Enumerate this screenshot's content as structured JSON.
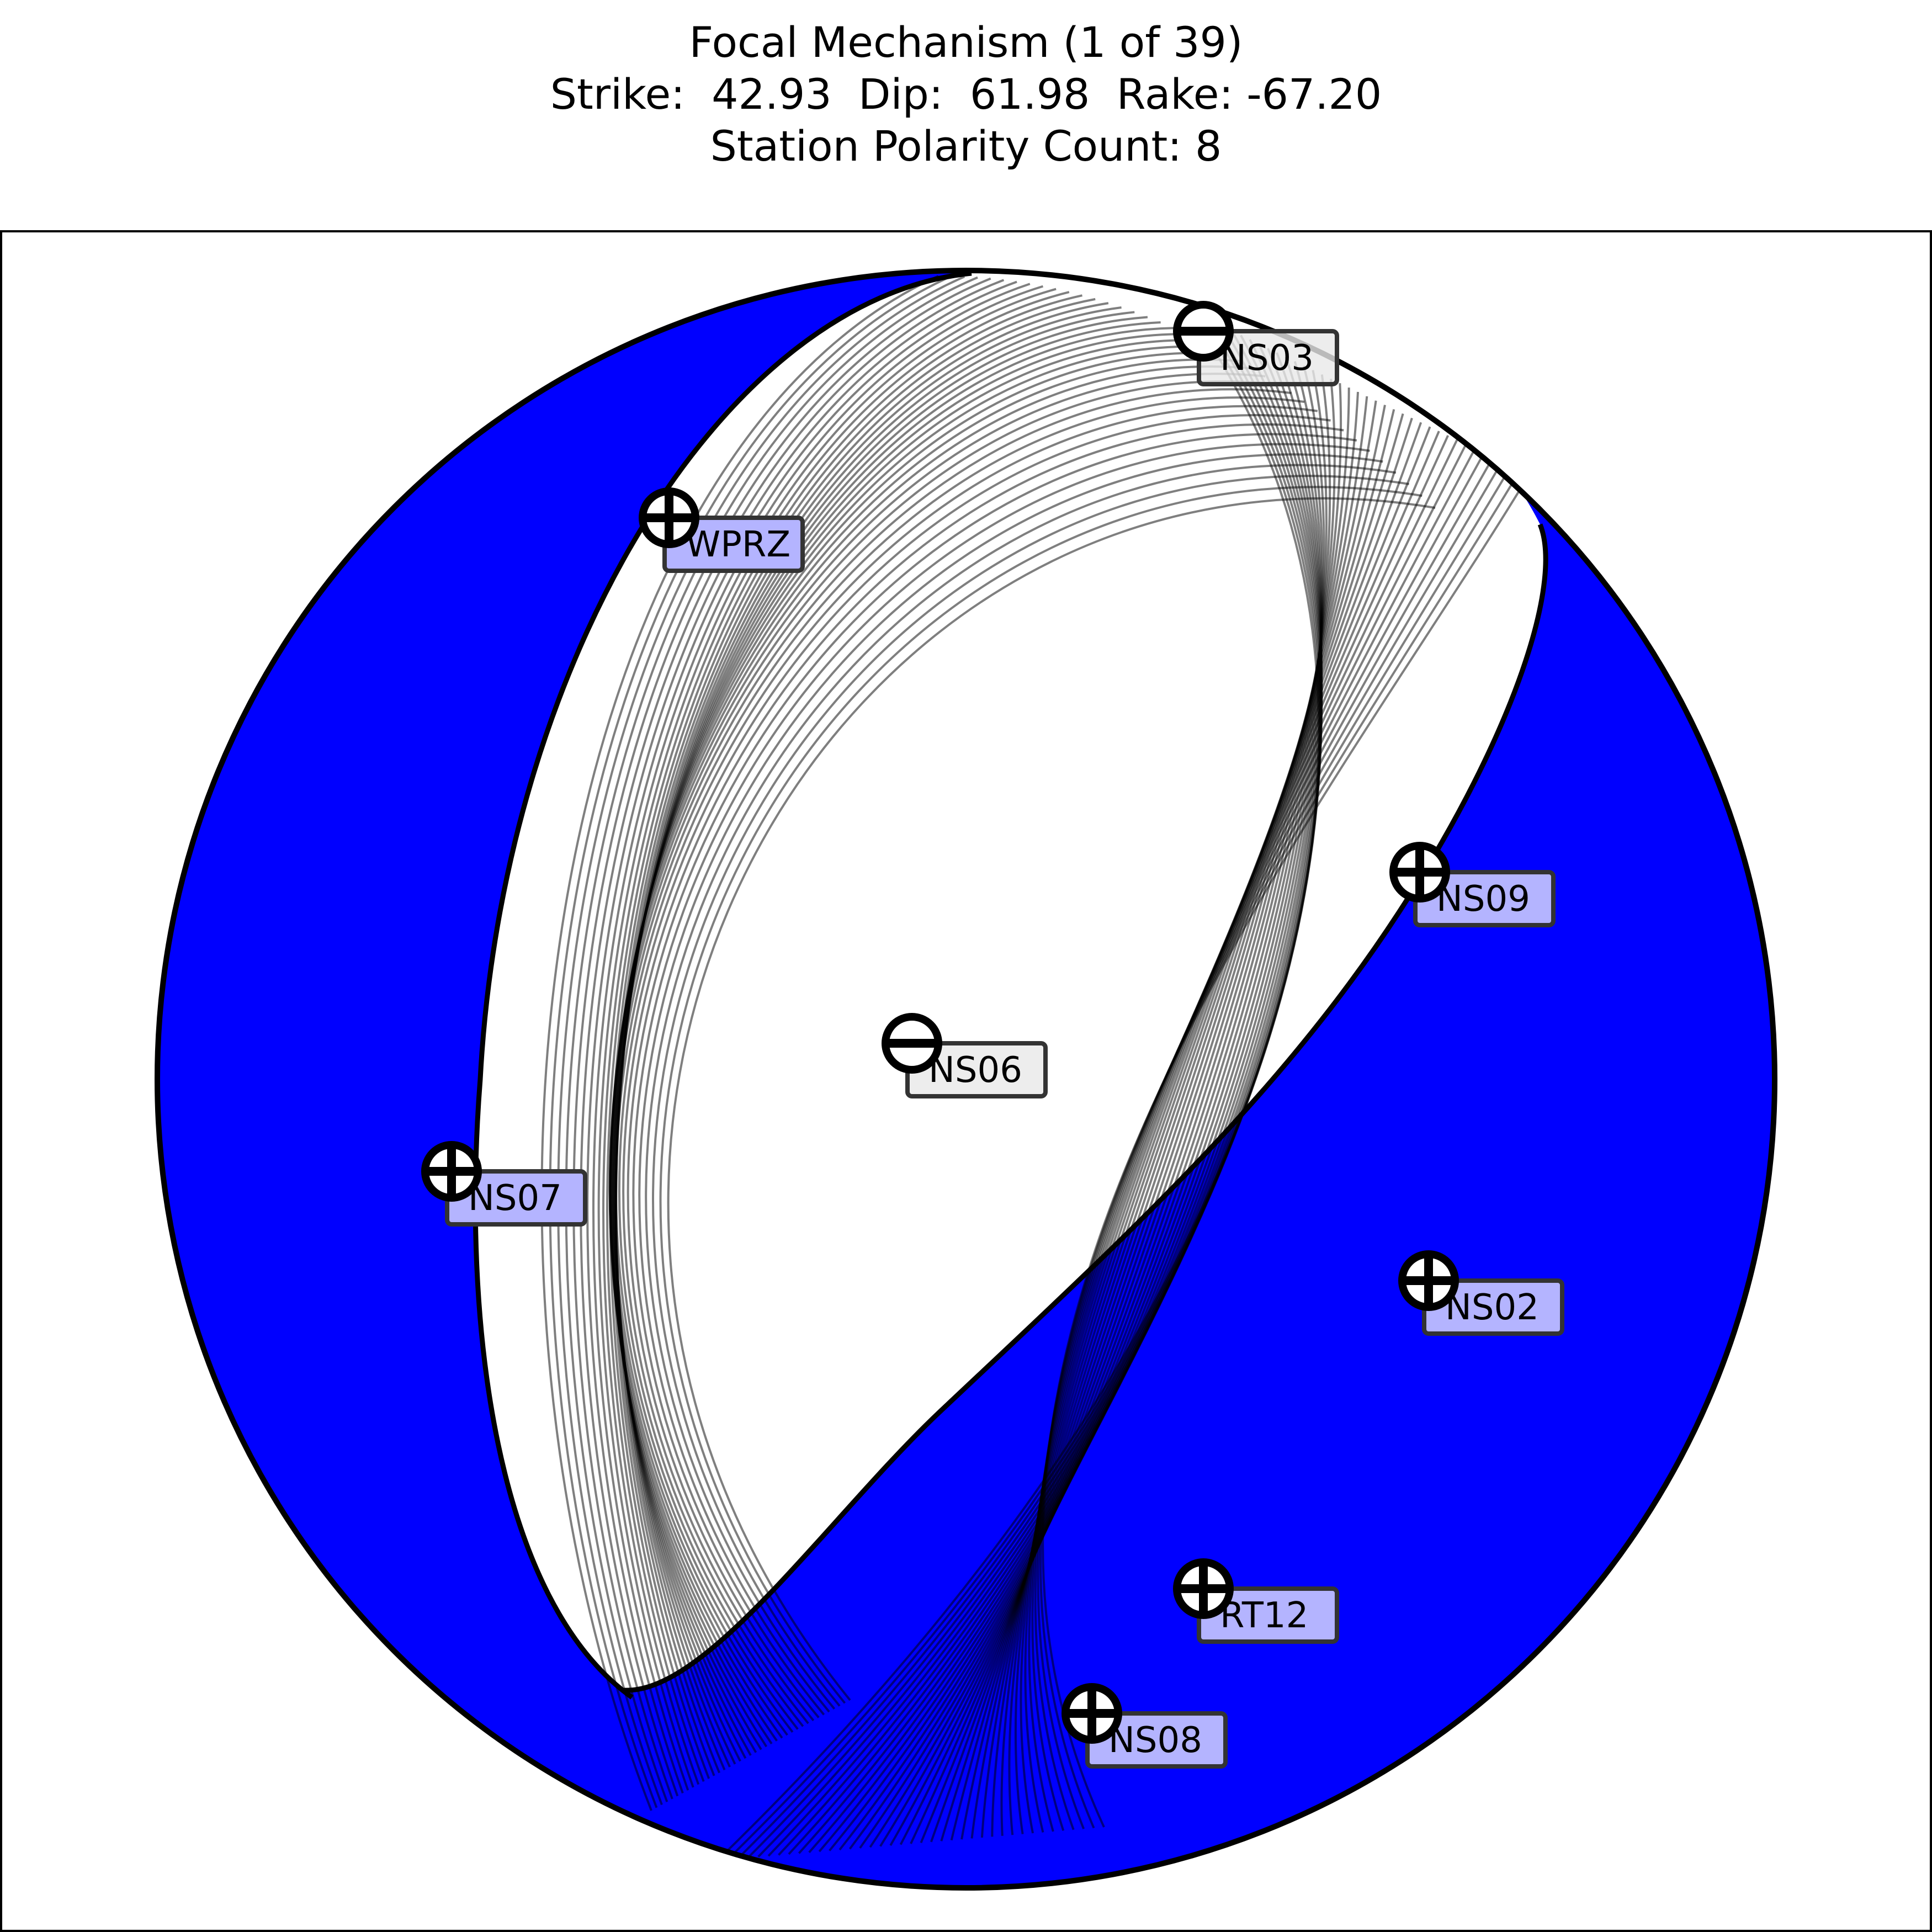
{
  "title": {
    "line1": "Focal Mechanism (1 of 39)",
    "line2": "Strike:  42.93  Dip:  61.98  Rake: -67.20",
    "line3": "Station Polarity Count: 8"
  },
  "mechanism": {
    "index": 1,
    "total": 39,
    "strike": 42.93,
    "dip": 61.98,
    "rake": -67.2,
    "station_polarity_count": 8,
    "solution_count": 39
  },
  "colors": {
    "compression_fill": "#0000ff",
    "dilatation_fill": "#ffffff",
    "outline": "#000000",
    "solution_lines": "rgba(0,0,0,0.5)",
    "up_label_bg": "#b4b4ff",
    "down_label_bg": "#e8e8e8"
  },
  "stations": [
    {
      "name": "NS03",
      "polarity": "down",
      "symbol": "minus-circle-icon"
    },
    {
      "name": "WPRZ",
      "polarity": "up",
      "symbol": "plus-circle-icon"
    },
    {
      "name": "NS09",
      "polarity": "up",
      "symbol": "plus-circle-icon"
    },
    {
      "name": "NS06",
      "polarity": "down",
      "symbol": "minus-circle-icon"
    },
    {
      "name": "NS07",
      "polarity": "up",
      "symbol": "plus-circle-icon"
    },
    {
      "name": "NS02",
      "polarity": "up",
      "symbol": "plus-circle-icon"
    },
    {
      "name": "RT12",
      "polarity": "up",
      "symbol": "plus-circle-icon"
    },
    {
      "name": "NS08",
      "polarity": "up",
      "symbol": "plus-circle-icon"
    }
  ]
}
